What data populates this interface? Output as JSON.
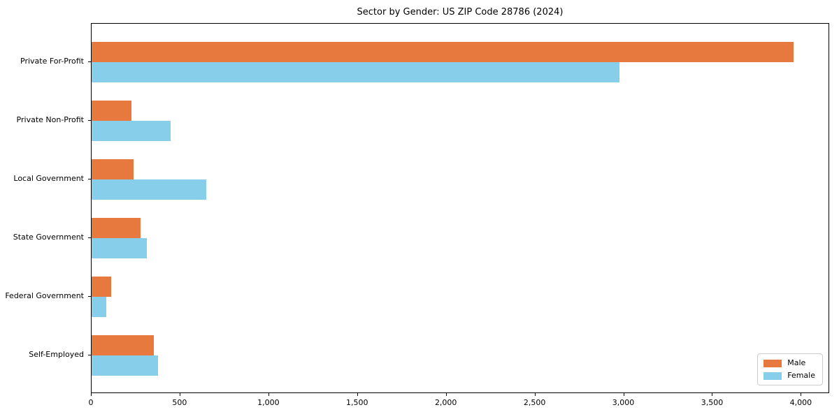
{
  "page": {
    "background": "#ffffff"
  },
  "chart_data": {
    "type": "bar",
    "orientation": "horizontal",
    "title": "Sector by Gender: US ZIP Code 28786 (2024)",
    "categories": [
      "Private For-Profit",
      "Private Non-Profit",
      "Local Government",
      "State Government",
      "Federal Government",
      "Self-Employed"
    ],
    "series": [
      {
        "name": "Male",
        "color": "#e8793e",
        "values": [
          3957,
          223,
          238,
          274,
          110,
          352
        ]
      },
      {
        "name": "Female",
        "color": "#87ceeb",
        "values": [
          2975,
          447,
          647,
          313,
          83,
          374
        ]
      }
    ],
    "xlabel": "",
    "ylabel": "",
    "xlim": [
      0,
      4160
    ],
    "x_ticks": [
      0,
      500,
      1000,
      1500,
      2000,
      2500,
      3000,
      3500,
      4000
    ],
    "x_tick_labels": [
      "0",
      "500",
      "1,000",
      "1,500",
      "2,000",
      "2,500",
      "3,000",
      "3,500",
      "4,000"
    ],
    "grid": false,
    "legend": {
      "position": "lower right"
    }
  }
}
